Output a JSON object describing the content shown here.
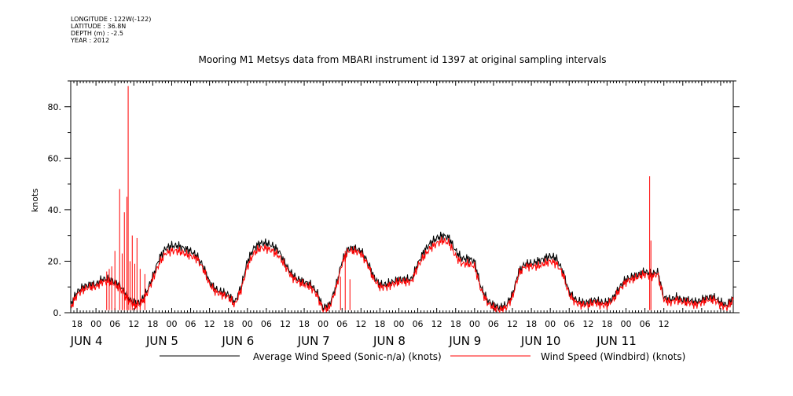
{
  "header": {
    "longitude": "LONGITUDE : 122W(-122)",
    "latitude": "LATITUDE : 36.8N",
    "depth": "DEPTH (m) : -2.5",
    "year": "YEAR : 2012"
  },
  "chart_data": {
    "type": "line",
    "title": "Mooring M1 Metsys data from MBARI instrument id 1397 at original sampling intervals",
    "ylabel": "knots",
    "ylim": [
      0,
      90
    ],
    "yticks": [
      0,
      20,
      40,
      60,
      80
    ],
    "ytick_labels": [
      "0.",
      "20.",
      "40.",
      "60.",
      "80."
    ],
    "xlim_hours": [
      -8,
      202
    ],
    "x_hour_ticks": [
      "18",
      "00",
      "06",
      "12",
      "18",
      "00",
      "06",
      "12",
      "18",
      "00",
      "06",
      "12",
      "18",
      "00",
      "06",
      "12",
      "18",
      "00",
      "06",
      "12",
      "18",
      "00",
      "06",
      "12",
      "18",
      "00",
      "06",
      "12",
      "18",
      "00",
      "06",
      "12"
    ],
    "x_date_labels": [
      "JUN  4",
      "JUN  5",
      "JUN  6",
      "JUN  7",
      "JUN  8",
      "JUN  9",
      "JUN 10",
      "JUN 11"
    ],
    "series": [
      {
        "name": "Average Wind Speed (Sonic-n/a) (knots)",
        "color": "#000000",
        "x_hours": [
          -8,
          -6,
          -4,
          -2,
          0,
          2,
          4,
          6,
          8,
          10,
          12,
          14,
          16,
          18,
          20,
          22,
          24,
          26,
          28,
          30,
          32,
          34,
          36,
          38,
          40,
          42,
          44,
          46,
          48,
          50,
          52,
          54,
          56,
          58,
          60,
          62,
          64,
          66,
          68,
          70,
          72,
          74,
          76,
          78,
          80,
          82,
          84,
          86,
          88,
          90,
          92,
          94,
          96,
          98,
          100,
          102,
          104,
          106,
          108,
          110,
          112,
          114,
          116,
          118,
          120,
          122,
          124,
          126,
          128,
          130,
          132,
          134,
          136,
          138,
          140,
          142,
          144,
          146,
          148,
          150,
          152,
          154,
          156,
          158,
          160,
          162,
          164,
          166,
          168,
          170,
          172,
          174,
          176,
          178,
          180,
          182,
          184,
          186,
          188,
          190,
          192,
          194,
          196,
          198,
          200,
          202
        ],
        "values": [
          3,
          8,
          10,
          11,
          11,
          13,
          13,
          12,
          10,
          6,
          4,
          4,
          8,
          14,
          21,
          25,
          26,
          26,
          25,
          24,
          22,
          18,
          12,
          9,
          8,
          7,
          4,
          10,
          20,
          25,
          27,
          27,
          26,
          24,
          19,
          15,
          13,
          12,
          11,
          8,
          2,
          3,
          10,
          20,
          25,
          25,
          24,
          20,
          14,
          11,
          11,
          12,
          13,
          13,
          13,
          19,
          24,
          27,
          29,
          30,
          29,
          24,
          21,
          21,
          20,
          10,
          5,
          3,
          2,
          3,
          7,
          16,
          19,
          19,
          20,
          21,
          22,
          21,
          16,
          8,
          5,
          4,
          4,
          5,
          4,
          4,
          6,
          10,
          13,
          14,
          15,
          16,
          15,
          16,
          6,
          5,
          6,
          5,
          5,
          4,
          5,
          6,
          6,
          4,
          3,
          6
        ]
      },
      {
        "name": "Wind Speed (Windbird) (knots)",
        "color": "#ff0000",
        "x_hours": [
          -8,
          -6,
          -4,
          -2,
          0,
          2,
          4,
          6,
          8,
          10,
          12,
          14,
          16,
          18,
          20,
          22,
          24,
          26,
          28,
          30,
          32,
          34,
          36,
          38,
          40,
          42,
          44,
          46,
          48,
          50,
          52,
          54,
          56,
          58,
          60,
          62,
          64,
          66,
          68,
          70,
          72,
          74,
          76,
          78,
          80,
          82,
          84,
          86,
          88,
          90,
          92,
          94,
          96,
          98,
          100,
          102,
          104,
          106,
          108,
          110,
          112,
          114,
          116,
          118,
          120,
          122,
          124,
          126,
          128,
          130,
          132,
          134,
          136,
          138,
          140,
          142,
          144,
          146,
          148,
          150,
          152,
          154,
          156,
          158,
          160,
          162,
          164,
          166,
          168,
          170,
          172,
          174,
          176,
          178,
          180,
          182,
          184,
          186,
          188,
          190,
          192,
          194,
          196,
          198,
          200,
          202
        ],
        "values": [
          2,
          7,
          9,
          10,
          10,
          12,
          12,
          11,
          9,
          5,
          3,
          3,
          7,
          13,
          19,
          23,
          24,
          24,
          23,
          22,
          21,
          17,
          11,
          8,
          7,
          6,
          3,
          9,
          18,
          23,
          25,
          25,
          24,
          22,
          18,
          14,
          12,
          11,
          10,
          7,
          1,
          2,
          9,
          19,
          24,
          24,
          23,
          19,
          13,
          10,
          10,
          11,
          12,
          12,
          12,
          18,
          22,
          25,
          27,
          28,
          27,
          22,
          19,
          19,
          18,
          9,
          4,
          2,
          1,
          2,
          6,
          15,
          18,
          18,
          18,
          19,
          20,
          19,
          15,
          7,
          4,
          3,
          3,
          4,
          3,
          3,
          5,
          9,
          12,
          13,
          14,
          15,
          14,
          15,
          5,
          4,
          5,
          4,
          4,
          3,
          4,
          5,
          5,
          3,
          2,
          5
        ]
      },
      {
        "name": "",
        "color": "#ff0000",
        "spikes": [
          {
            "x_hour": 7.5,
            "value": 48
          },
          {
            "x_hour": 9.0,
            "value": 39
          },
          {
            "x_hour": 9.8,
            "value": 45
          },
          {
            "x_hour": 10.2,
            "value": 88
          },
          {
            "x_hour": 11.5,
            "value": 30
          },
          {
            "x_hour": 13.0,
            "value": 29
          },
          {
            "x_hour": 6.0,
            "value": 24
          },
          {
            "x_hour": 5.0,
            "value": 18
          },
          {
            "x_hour": 4.2,
            "value": 17
          },
          {
            "x_hour": 3.4,
            "value": 16
          },
          {
            "x_hour": 8.3,
            "value": 23
          },
          {
            "x_hour": 10.8,
            "value": 20
          },
          {
            "x_hour": 12.3,
            "value": 19
          },
          {
            "x_hour": 14.0,
            "value": 17
          },
          {
            "x_hour": 15.5,
            "value": 15
          },
          {
            "x_hour": 79.0,
            "value": 24
          },
          {
            "x_hour": 77.5,
            "value": 14
          },
          {
            "x_hour": 80.5,
            "value": 13
          },
          {
            "x_hour": 175.5,
            "value": 53
          },
          {
            "x_hour": 175.9,
            "value": 28
          }
        ]
      }
    ],
    "legend": "bottom"
  }
}
